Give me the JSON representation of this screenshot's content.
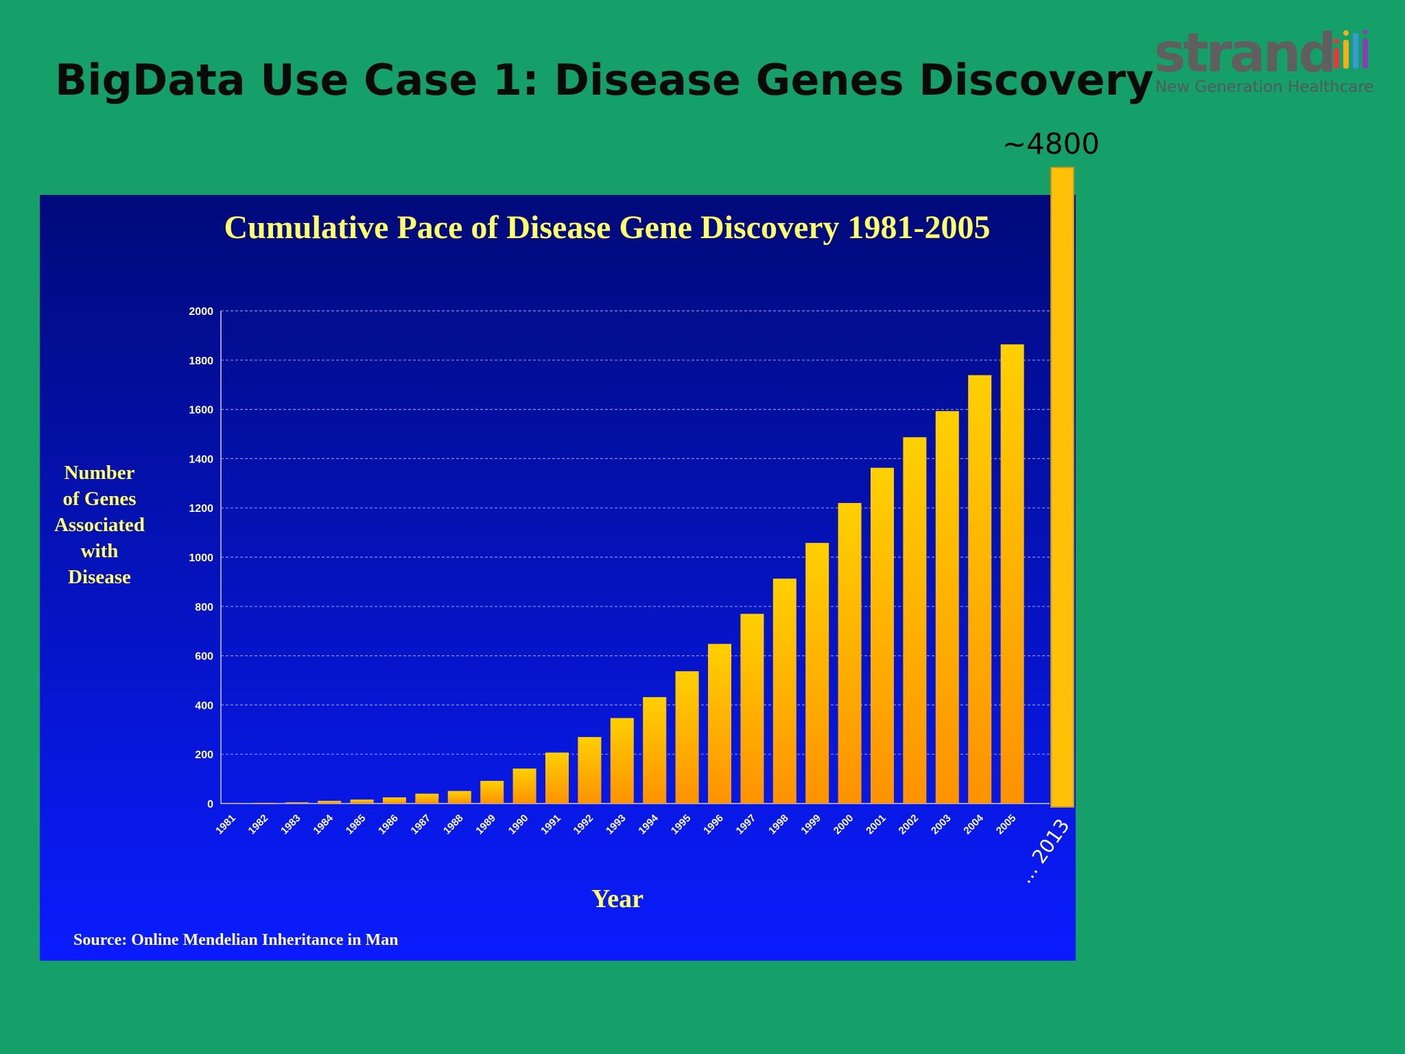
{
  "slide": {
    "title": "BigData Use Case 1: Disease Genes Discovery"
  },
  "logo": {
    "word": "strand",
    "tagline": "New Generation Healthcare",
    "bar_colors": [
      "#e23a3a",
      "#f2b11c",
      "#3a9ad9",
      "#8a3fb0"
    ]
  },
  "colors": {
    "slide_background": "#14a068",
    "chart_background_top": "#000a7a",
    "chart_background_bottom": "#0a1cff",
    "bar_top": "#ffd000",
    "bar_bottom": "#ff9200",
    "chart_text": "#ffff66",
    "tick_text": "#ffffff"
  },
  "chart_data": {
    "type": "bar",
    "title": "Cumulative Pace of Disease Gene Discovery 1981-2005",
    "xlabel": "Year",
    "ylabel": [
      "Number",
      "of Genes",
      "Associated",
      "with",
      "Disease"
    ],
    "source": "Source: Online Mendelian Inheritance in Man",
    "ylim": [
      0,
      2000
    ],
    "yticks": [
      "0",
      "200",
      "400",
      "600",
      "800",
      "1000",
      "1200",
      "1400",
      "1600",
      "1800",
      "2000"
    ],
    "grid": true,
    "categories": [
      "1981",
      "1982",
      "1983",
      "1984",
      "1985",
      "1986",
      "1987",
      "1988",
      "1989",
      "1990",
      "1991",
      "1992",
      "1993",
      "1994",
      "1995",
      "1996",
      "1997",
      "1998",
      "1999",
      "2000",
      "2001",
      "2002",
      "2003",
      "2004",
      "2005"
    ],
    "values": [
      0,
      3,
      5,
      11,
      16,
      25,
      40,
      51,
      92,
      142,
      207,
      270,
      347,
      432,
      537,
      648,
      770,
      913,
      1058,
      1220,
      1363,
      1487,
      1593,
      1739,
      1864
    ],
    "extension": {
      "label": "... 2013",
      "value_label": "~4800",
      "value": 4800
    }
  }
}
